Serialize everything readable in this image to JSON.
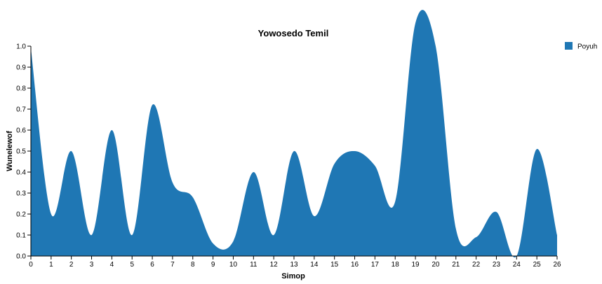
{
  "chart_data": {
    "type": "area",
    "title": "Yowosedo Temil",
    "xlabel": "Simop",
    "ylabel": "Wunelewof",
    "xlim": [
      0,
      26
    ],
    "ylim": [
      0,
      1.0
    ],
    "x_ticks": [
      "0",
      "1",
      "2",
      "3",
      "4",
      "5",
      "6",
      "7",
      "8",
      "9",
      "10",
      "11",
      "12",
      "13",
      "14",
      "15",
      "16",
      "17",
      "18",
      "19",
      "20",
      "21",
      "22",
      "23",
      "24",
      "25",
      "26"
    ],
    "y_ticks": [
      "0.0",
      "0.1",
      "0.2",
      "0.3",
      "0.4",
      "0.5",
      "0.6",
      "0.7",
      "0.8",
      "0.9",
      "1.0"
    ],
    "grid": false,
    "legend_position": "top-right",
    "series": [
      {
        "name": "Poyuh",
        "color": "#1f77b4",
        "x": [
          0,
          1,
          2,
          3,
          4,
          5,
          6,
          7,
          8,
          9,
          10,
          11,
          12,
          13,
          14,
          15,
          16,
          17,
          18,
          19,
          20,
          21,
          22,
          23,
          24,
          25,
          26
        ],
        "y": [
          0.99,
          0.2,
          0.5,
          0.1,
          0.6,
          0.1,
          0.72,
          0.35,
          0.28,
          0.06,
          0.07,
          0.4,
          0.1,
          0.5,
          0.19,
          0.44,
          0.5,
          0.43,
          0.26,
          1.11,
          1.0,
          0.13,
          0.09,
          0.21,
          0.0,
          0.51,
          0.1
        ]
      }
    ]
  }
}
